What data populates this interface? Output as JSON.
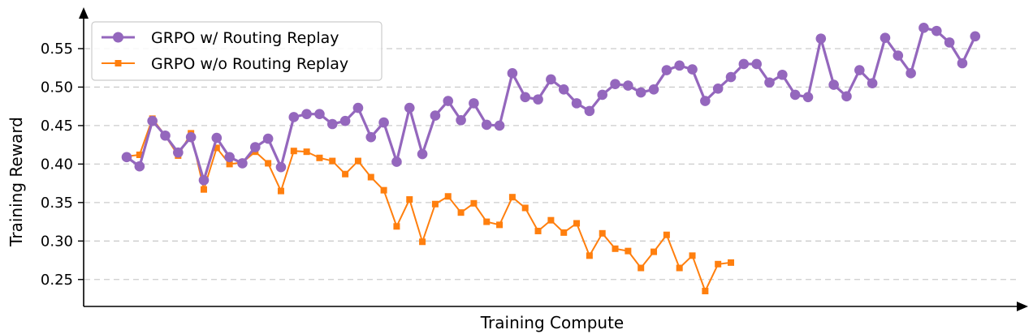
{
  "chart_data": {
    "type": "line",
    "xlabel": "Training Compute",
    "ylabel": "Training Reward",
    "ylim": [
      0.215,
      0.59
    ],
    "yticks": [
      "0.25",
      "0.30",
      "0.35",
      "0.40",
      "0.45",
      "0.50",
      "0.55"
    ],
    "grid": "horizontal dashed",
    "legend": "top-left",
    "series": [
      {
        "name": "GRPO w/ Routing Replay",
        "color": "#9467bd",
        "marker": "circle",
        "values": [
          0.409,
          0.397,
          0.456,
          0.437,
          0.415,
          0.435,
          0.379,
          0.434,
          0.409,
          0.401,
          0.422,
          0.433,
          0.396,
          0.461,
          0.465,
          0.465,
          0.452,
          0.456,
          0.473,
          0.435,
          0.454,
          0.403,
          0.473,
          0.413,
          0.463,
          0.482,
          0.457,
          0.479,
          0.451,
          0.45,
          0.518,
          0.487,
          0.484,
          0.51,
          0.497,
          0.479,
          0.469,
          0.49,
          0.504,
          0.502,
          0.493,
          0.497,
          0.522,
          0.528,
          0.523,
          0.482,
          0.498,
          0.513,
          0.53,
          0.53,
          0.506,
          0.516,
          0.49,
          0.487,
          0.563,
          0.503,
          0.488,
          0.522,
          0.505,
          0.564,
          0.541,
          0.518,
          0.577,
          0.573,
          0.558,
          0.531,
          0.566
        ]
      },
      {
        "name": "GRPO w/o Routing Replay",
        "color": "#ff7f0e",
        "marker": "square",
        "values": [
          0.41,
          0.412,
          0.459,
          0.437,
          0.411,
          0.44,
          0.367,
          0.421,
          0.4,
          0.402,
          0.416,
          0.401,
          0.365,
          0.417,
          0.416,
          0.408,
          0.404,
          0.387,
          0.404,
          0.383,
          0.366,
          0.319,
          0.354,
          0.299,
          0.348,
          0.358,
          0.337,
          0.349,
          0.325,
          0.321,
          0.357,
          0.343,
          0.313,
          0.327,
          0.311,
          0.323,
          0.281,
          0.31,
          0.29,
          0.287,
          0.265,
          0.286,
          0.308,
          0.265,
          0.281,
          0.235,
          0.27,
          0.272
        ]
      }
    ]
  }
}
